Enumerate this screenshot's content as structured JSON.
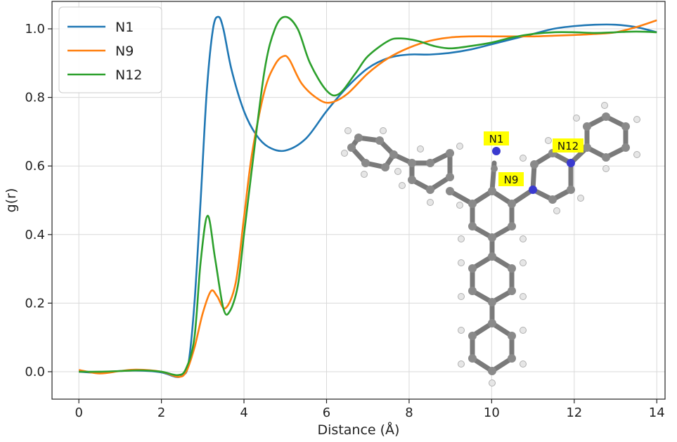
{
  "chart_data": {
    "type": "line",
    "xlabel": "Distance (Å)",
    "ylabel": "g(r)",
    "xlim": [
      -0.65,
      14.2
    ],
    "ylim": [
      -0.08,
      1.08
    ],
    "xticks": [
      0,
      2,
      4,
      6,
      8,
      10,
      12,
      14
    ],
    "yticks": [
      0.0,
      0.2,
      0.4,
      0.6,
      0.8,
      1.0
    ],
    "xtick_labels": [
      "0",
      "2",
      "4",
      "6",
      "8",
      "10",
      "12",
      "14"
    ],
    "ytick_labels": [
      "0.0",
      "0.2",
      "0.4",
      "0.6",
      "0.8",
      "1.0"
    ],
    "grid": true,
    "legend_position": "top-left",
    "series": [
      {
        "name": "N1",
        "color": "#1f77b4",
        "points": [
          [
            0,
            0.0
          ],
          [
            0.5,
            -0.003
          ],
          [
            1.0,
            0.002
          ],
          [
            1.5,
            0.003
          ],
          [
            2.0,
            -0.002
          ],
          [
            2.35,
            -0.015
          ],
          [
            2.5,
            -0.01
          ],
          [
            2.65,
            0.02
          ],
          [
            2.8,
            0.2
          ],
          [
            2.95,
            0.5
          ],
          [
            3.1,
            0.82
          ],
          [
            3.25,
            1.0
          ],
          [
            3.38,
            1.035
          ],
          [
            3.5,
            1.0
          ],
          [
            3.7,
            0.88
          ],
          [
            4.0,
            0.76
          ],
          [
            4.3,
            0.69
          ],
          [
            4.6,
            0.655
          ],
          [
            5.0,
            0.645
          ],
          [
            5.5,
            0.68
          ],
          [
            6.0,
            0.76
          ],
          [
            6.5,
            0.83
          ],
          [
            7.0,
            0.885
          ],
          [
            7.5,
            0.915
          ],
          [
            8.0,
            0.925
          ],
          [
            8.5,
            0.925
          ],
          [
            9.0,
            0.93
          ],
          [
            9.5,
            0.94
          ],
          [
            10.0,
            0.955
          ],
          [
            10.5,
            0.97
          ],
          [
            11.0,
            0.985
          ],
          [
            11.5,
            1.0
          ],
          [
            12.0,
            1.008
          ],
          [
            12.5,
            1.012
          ],
          [
            13.0,
            1.012
          ],
          [
            13.5,
            1.005
          ],
          [
            14.0,
            0.99
          ]
        ]
      },
      {
        "name": "N9",
        "color": "#ff7f0e",
        "points": [
          [
            0,
            0.005
          ],
          [
            0.5,
            -0.005
          ],
          [
            1.0,
            0.002
          ],
          [
            1.4,
            0.006
          ],
          [
            2.0,
            0.0
          ],
          [
            2.4,
            -0.015
          ],
          [
            2.6,
            0.0
          ],
          [
            2.8,
            0.07
          ],
          [
            3.0,
            0.17
          ],
          [
            3.2,
            0.235
          ],
          [
            3.35,
            0.22
          ],
          [
            3.55,
            0.185
          ],
          [
            3.8,
            0.26
          ],
          [
            4.0,
            0.45
          ],
          [
            4.2,
            0.64
          ],
          [
            4.5,
            0.82
          ],
          [
            4.75,
            0.895
          ],
          [
            4.95,
            0.92
          ],
          [
            5.1,
            0.91
          ],
          [
            5.4,
            0.84
          ],
          [
            5.8,
            0.795
          ],
          [
            6.1,
            0.785
          ],
          [
            6.5,
            0.81
          ],
          [
            7.0,
            0.87
          ],
          [
            7.5,
            0.915
          ],
          [
            8.0,
            0.945
          ],
          [
            8.5,
            0.965
          ],
          [
            9.0,
            0.975
          ],
          [
            9.5,
            0.978
          ],
          [
            10.0,
            0.978
          ],
          [
            10.5,
            0.978
          ],
          [
            11.0,
            0.978
          ],
          [
            11.5,
            0.98
          ],
          [
            12.0,
            0.982
          ],
          [
            12.5,
            0.985
          ],
          [
            13.0,
            0.99
          ],
          [
            13.5,
            1.005
          ],
          [
            14.0,
            1.025
          ]
        ]
      },
      {
        "name": "N12",
        "color": "#2ca02c",
        "points": [
          [
            0,
            0.0
          ],
          [
            0.5,
            0.0
          ],
          [
            1.0,
            0.002
          ],
          [
            1.5,
            0.004
          ],
          [
            2.0,
            0.0
          ],
          [
            2.4,
            -0.01
          ],
          [
            2.6,
            0.01
          ],
          [
            2.8,
            0.1
          ],
          [
            2.95,
            0.32
          ],
          [
            3.12,
            0.455
          ],
          [
            3.3,
            0.33
          ],
          [
            3.5,
            0.185
          ],
          [
            3.65,
            0.175
          ],
          [
            3.85,
            0.25
          ],
          [
            4.0,
            0.4
          ],
          [
            4.2,
            0.6
          ],
          [
            4.5,
            0.88
          ],
          [
            4.75,
            1.0
          ],
          [
            5.0,
            1.035
          ],
          [
            5.3,
            1.0
          ],
          [
            5.6,
            0.9
          ],
          [
            6.0,
            0.82
          ],
          [
            6.3,
            0.81
          ],
          [
            6.7,
            0.87
          ],
          [
            7.0,
            0.92
          ],
          [
            7.5,
            0.965
          ],
          [
            7.8,
            0.972
          ],
          [
            8.2,
            0.965
          ],
          [
            8.6,
            0.95
          ],
          [
            9.0,
            0.943
          ],
          [
            9.5,
            0.95
          ],
          [
            10.0,
            0.96
          ],
          [
            10.5,
            0.975
          ],
          [
            11.0,
            0.985
          ],
          [
            11.5,
            0.99
          ],
          [
            12.0,
            0.99
          ],
          [
            12.5,
            0.988
          ],
          [
            13.0,
            0.99
          ],
          [
            13.5,
            0.992
          ],
          [
            14.0,
            0.99
          ]
        ]
      }
    ],
    "inset_labels": [
      "N1",
      "N9",
      "N12"
    ]
  }
}
